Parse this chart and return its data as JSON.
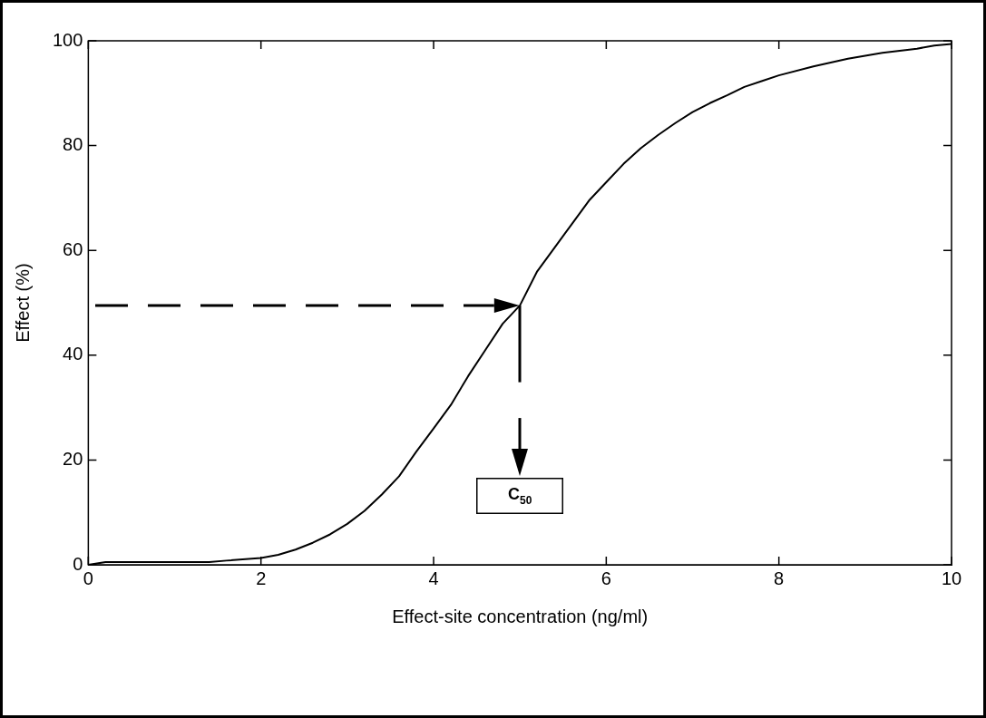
{
  "chart_data": {
    "type": "line",
    "xlabel": "Effect-site concentration (ng/ml)",
    "ylabel": "Effect (%)",
    "x": [
      0,
      0.2,
      0.6,
      1.0,
      1.4,
      1.6,
      2.0,
      2.2,
      2.4,
      2.6,
      2.8,
      3.0,
      3.2,
      3.4,
      3.6,
      3.8,
      4.0,
      4.2,
      4.4,
      4.6,
      4.8,
      5.0,
      5.2,
      5.4,
      5.6,
      5.8,
      6.0,
      6.2,
      6.4,
      6.6,
      6.8,
      7.0,
      7.2,
      7.4,
      7.6,
      7.8,
      8.0,
      8.4,
      8.8,
      9.2,
      9.6,
      9.8,
      10
    ],
    "series": [
      {
        "color": "#000000",
        "values": [
          0,
          0.5,
          0.5,
          0.5,
          0.5,
          0.8,
          1.3,
          1.9,
          2.9,
          4.2,
          5.8,
          7.8,
          10.3,
          13.4,
          16.9,
          21.6,
          26,
          30.5,
          36,
          41,
          46,
          49.5,
          56,
          60.5,
          65,
          69.5,
          73,
          76.5,
          79.5,
          82,
          84.3,
          86.4,
          88.1,
          89.6,
          91.2,
          92.3,
          93.4,
          95.1,
          96.6,
          97.7,
          98.5,
          99.1,
          99.4
        ]
      }
    ],
    "xlim": [
      0,
      10
    ],
    "ylim": [
      0,
      100
    ],
    "xticks": [
      0,
      2,
      4,
      6,
      8,
      10
    ],
    "yticks": [
      0,
      20,
      40,
      60,
      80,
      100
    ],
    "grid": false,
    "legend": false,
    "marker": "none",
    "line_style": "solid",
    "annotations": [
      "C$_{50}$"
    ]
  }
}
